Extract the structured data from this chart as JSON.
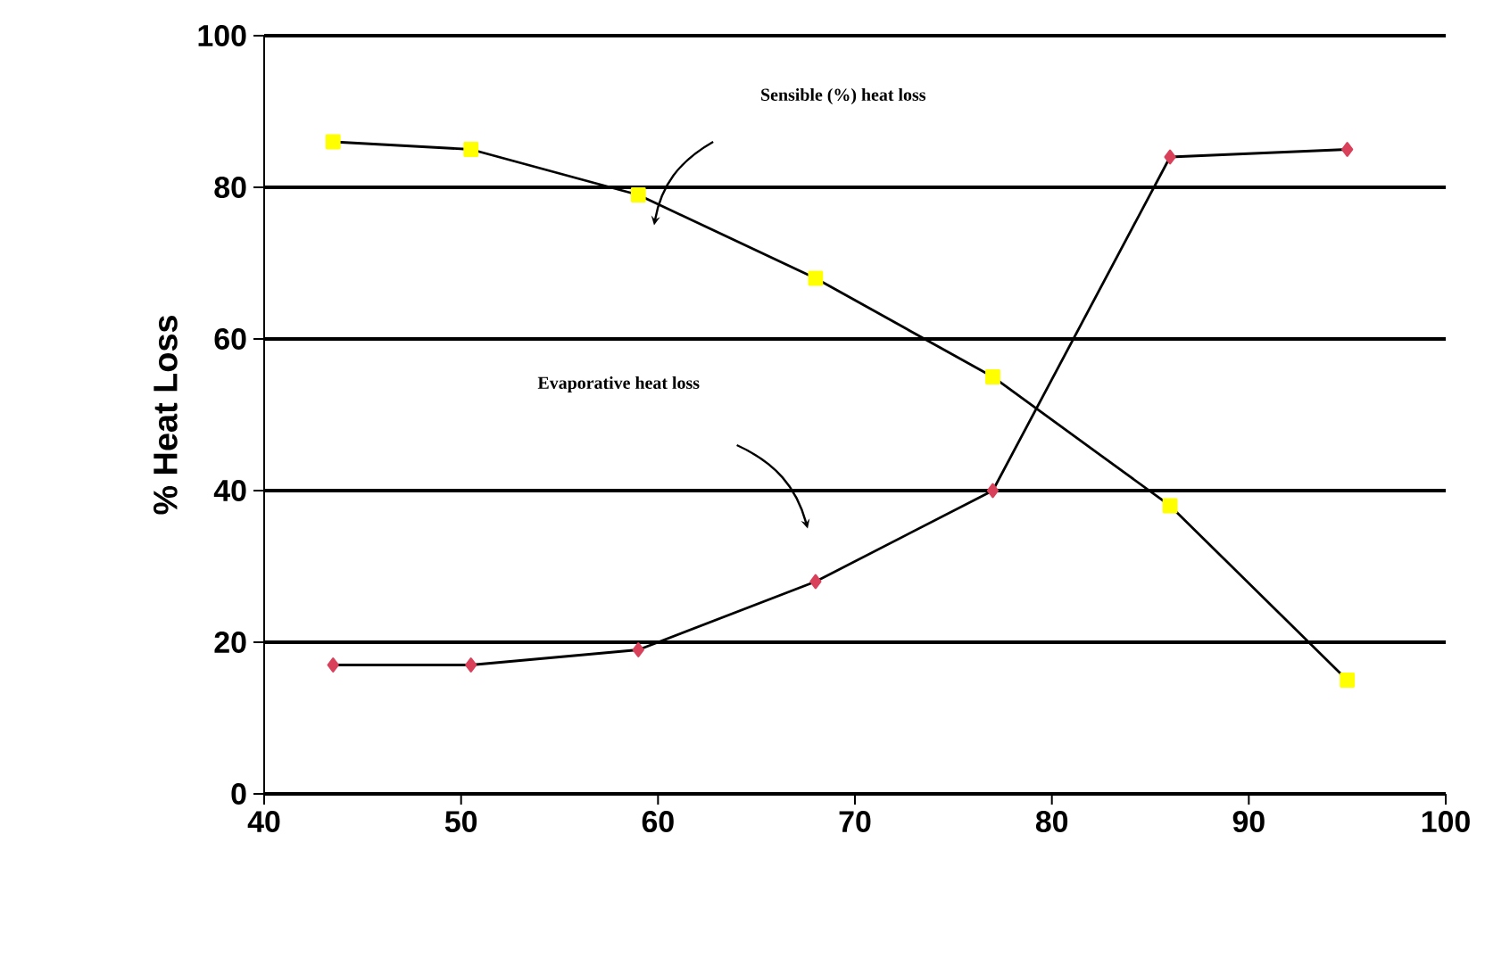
{
  "chart_data": {
    "type": "line",
    "ylabel": "% Heat Loss",
    "xlim": [
      40,
      100
    ],
    "xticks": [
      40,
      50,
      60,
      70,
      80,
      90,
      100
    ],
    "ylim": [
      0,
      100
    ],
    "yticks": [
      0,
      20,
      40,
      60,
      80,
      100
    ],
    "grid": "y",
    "line_style": "solid",
    "series": [
      {
        "color": "#ffff00",
        "marker": "square",
        "x": [
          43.5,
          50.5,
          59,
          68,
          77,
          86,
          95
        ],
        "values": [
          86,
          85,
          79,
          68,
          55,
          38,
          15
        ]
      },
      {
        "color": "#d9415a",
        "marker": "diamond",
        "x": [
          43.5,
          50.5,
          59,
          68,
          77,
          86,
          95
        ],
        "values": [
          17,
          17,
          19,
          28,
          40,
          84,
          85
        ]
      }
    ],
    "annotations": [
      "Sensible (%) heat loss",
      "Evaporative heat loss"
    ]
  }
}
